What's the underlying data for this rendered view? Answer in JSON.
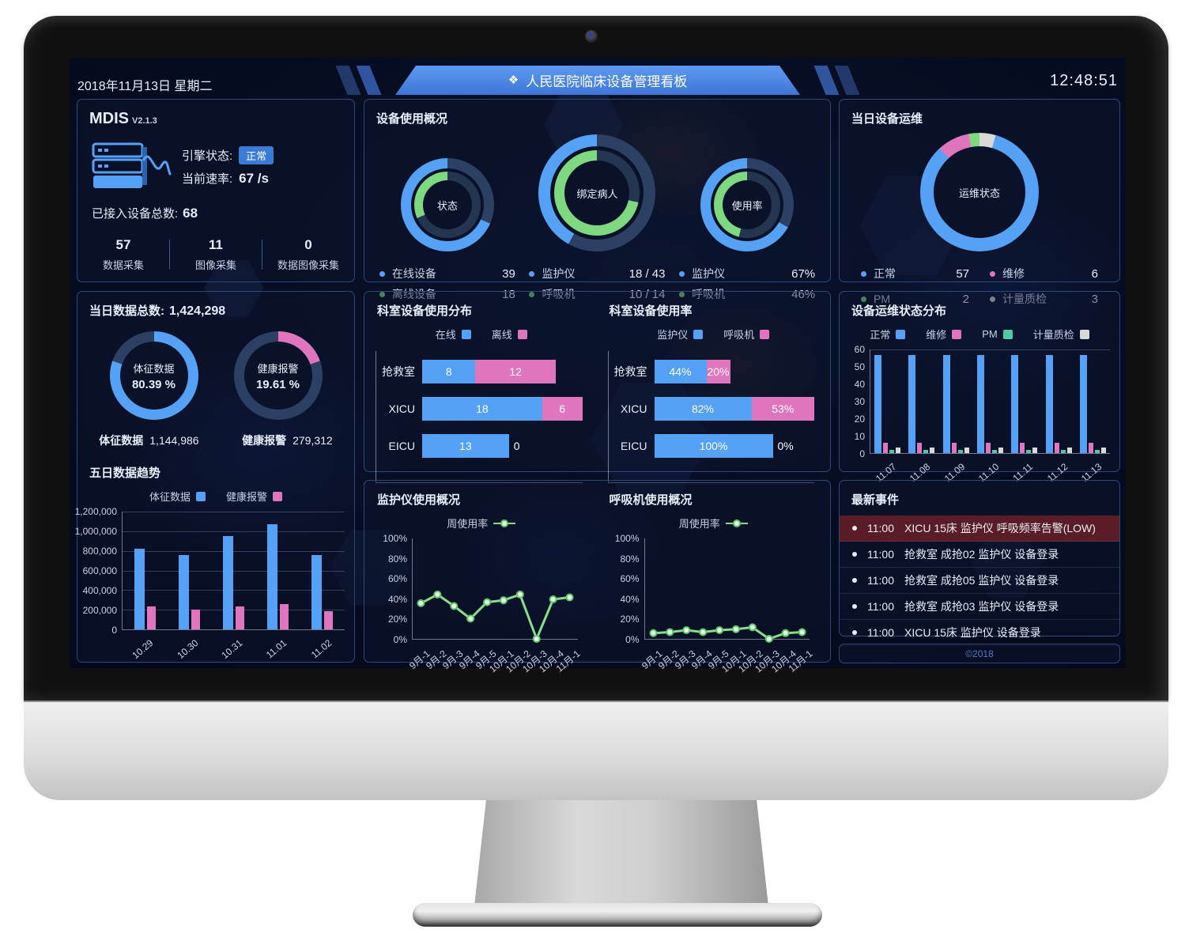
{
  "colors": {
    "blue": "#55a1f5",
    "green": "#7ed87f",
    "pink": "#df76bd",
    "teal": "#4ec9a5",
    "whiteseg": "#d9d9d9",
    "slate": "#2b4062",
    "slate2": "#24364f",
    "alert": "#5a1d27",
    "badge": "#3a7bd5",
    "footerc": "#4d7cc9"
  },
  "header": {
    "date": "2018年11月13日 星期二",
    "title": "人民医院临床设备管理看板",
    "title_icon": "diamond-cluster-icon",
    "time": "12:48:51"
  },
  "mdis": {
    "name": "MDIS",
    "version": "V2.1.3",
    "engine_label": "引擎状态:",
    "engine_status": "正常",
    "rate_label": "当前速率:",
    "rate_value": "67 /s",
    "total_label": "已接入设备总数:",
    "total_value": "68",
    "stats": [
      {
        "value": "57",
        "label": "数据采集"
      },
      {
        "value": "11",
        "label": "图像采集"
      },
      {
        "value": "0",
        "label": "数据图像采集"
      }
    ]
  },
  "usage": {
    "title": "设备使用概况",
    "donuts": [
      {
        "center": "状态",
        "blue_pct": 68.4,
        "green_pct": 31.6,
        "legend": [
          {
            "label": "在线设备",
            "value": "39"
          },
          {
            "label": "离线设备",
            "value": "18"
          }
        ]
      },
      {
        "center": "绑定病人",
        "blue_pct": 41.9,
        "green_pct": 71.4,
        "legend": [
          {
            "label": "监护仪",
            "value": "18 / 43"
          },
          {
            "label": "呼吸机",
            "value": "10 / 14"
          }
        ]
      },
      {
        "center": "使用率",
        "blue_pct": 67,
        "green_pct": 46,
        "legend": [
          {
            "label": "监护仪",
            "value": "67%"
          },
          {
            "label": "呼吸机",
            "value": "46%"
          }
        ]
      }
    ]
  },
  "maintenance": {
    "title": "当日设备运维",
    "center": "运维状态",
    "segments": [
      {
        "label": "计量质检",
        "value": 3,
        "color": "#d9d9d9"
      },
      {
        "label": "正常",
        "value": 57,
        "color": "#55a1f5"
      },
      {
        "label": "维修",
        "value": 6,
        "color": "#df76bd"
      },
      {
        "label": "PM",
        "value": 2,
        "color": "#7ed87f"
      }
    ],
    "legend": [
      {
        "label": "正常",
        "value": "57"
      },
      {
        "label": "维修",
        "value": "6"
      },
      {
        "label": "PM",
        "value": "2"
      },
      {
        "label": "计量质检",
        "value": "3"
      }
    ]
  },
  "daily": {
    "total_label": "当日数据总数:",
    "total_value": "1,424,298",
    "donuts": [
      {
        "line1": "体征数据",
        "line2": "80.39 %",
        "pct": 80.39,
        "color": "#55a1f5"
      },
      {
        "line1": "健康报警",
        "line2": "19.61 %",
        "pct": 19.61,
        "color": "#df76bd"
      }
    ],
    "totals": [
      {
        "label": "体征数据",
        "value": "1,144,986"
      },
      {
        "label": "健康报警",
        "value": "279,312"
      }
    ]
  },
  "trend": {
    "title": "五日数据趋势",
    "legend": [
      {
        "label": "体征数据"
      },
      {
        "label": "健康报警"
      }
    ],
    "y_ticks": [
      "1,200,000",
      "1,000,000",
      "800,000",
      "600,000",
      "400,000",
      "200,000",
      "0"
    ],
    "y_max": 1200000,
    "categories": [
      "10.29",
      "10.30",
      "10.31",
      "11.01",
      "11.02"
    ],
    "series": [
      {
        "name": "体征数据",
        "color": "#55a1f5",
        "values": [
          820000,
          760000,
          950000,
          1070000,
          760000
        ]
      },
      {
        "name": "健康报警",
        "color": "#df76bd",
        "values": [
          230000,
          200000,
          230000,
          260000,
          185000
        ]
      }
    ]
  },
  "dept_dist": {
    "title": "科室设备使用分布",
    "legend": [
      {
        "label": "在线"
      },
      {
        "label": "离线"
      }
    ],
    "max_total": 24,
    "rows": [
      {
        "label": "抢救室",
        "blue": 8,
        "pink": 12,
        "blue_text": "8",
        "pink_text": "12"
      },
      {
        "label": "XICU",
        "blue": 18,
        "pink": 6,
        "blue_text": "18",
        "pink_text": "6"
      },
      {
        "label": "EICU",
        "blue": 13,
        "pink": 0,
        "blue_text": "13",
        "pink_text": "0"
      }
    ]
  },
  "dept_usage": {
    "title": "科室设备使用率",
    "legend": [
      {
        "label": "监护仪"
      },
      {
        "label": "呼吸机"
      }
    ],
    "max_total": 135,
    "rows": [
      {
        "label": "抢救室",
        "blue": 44,
        "pink": 20,
        "blue_text": "44%",
        "pink_text": "20%"
      },
      {
        "label": "XICU",
        "blue": 82,
        "pink": 53,
        "blue_text": "82%",
        "pink_text": "53%"
      },
      {
        "label": "EICU",
        "blue": 100,
        "pink": 0,
        "blue_text": "100%",
        "pink_text": "0%"
      }
    ]
  },
  "maint_dist": {
    "title": "设备运维状态分布",
    "legend": [
      {
        "label": "正常"
      },
      {
        "label": "维修"
      },
      {
        "label": "PM"
      },
      {
        "label": "计量质检"
      }
    ],
    "y_ticks": [
      "60",
      "50",
      "40",
      "30",
      "20",
      "10",
      "0"
    ],
    "y_max": 60,
    "categories": [
      "11.07",
      "11.08",
      "11.09",
      "11.10",
      "11.11",
      "11.12",
      "11.13"
    ],
    "series_colors": [
      "#55a1f5",
      "#df76bd",
      "#4ec9a5",
      "#d9d9d9"
    ],
    "values_per_day": [
      57,
      6,
      2,
      3
    ]
  },
  "monitor_line": {
    "title": "监护仪使用概况",
    "legend_label": "周使用率",
    "y_ticks": [
      "100%",
      "80%",
      "60%",
      "40%",
      "20%",
      "0%"
    ],
    "x": [
      "9月-1",
      "9月-2",
      "9月-3",
      "9月-4",
      "9月-5",
      "10月-1",
      "10月-2",
      "10月-3",
      "10月-4",
      "11月-1"
    ],
    "values": [
      37,
      46,
      34,
      21,
      38,
      40,
      46,
      0,
      41,
      43
    ]
  },
  "vent_line": {
    "title": "呼吸机使用概况",
    "legend_label": "周使用率",
    "y_ticks": [
      "100%",
      "80%",
      "60%",
      "40%",
      "20%",
      "0%"
    ],
    "x": [
      "9月-1",
      "9月-2",
      "9月-3",
      "9月-4",
      "9月-5",
      "10月-1",
      "10月-2",
      "10月-3",
      "10月-4",
      "11月-1"
    ],
    "values": [
      6,
      7,
      9,
      7,
      9,
      10,
      12,
      0,
      6,
      7
    ]
  },
  "events": {
    "title": "最新事件",
    "items": [
      {
        "time": "11:00",
        "text": "XICU 15床 监护仪 呼吸频率告警(LOW)",
        "alert": true
      },
      {
        "time": "11:00",
        "text": "抢救室 成抢02 监护仪 设备登录",
        "alert": false
      },
      {
        "time": "11:00",
        "text": "抢救室 成抢05 监护仪 设备登录",
        "alert": false
      },
      {
        "time": "11:00",
        "text": "抢救室 成抢03 监护仪 设备登录",
        "alert": false
      },
      {
        "time": "11:00",
        "text": "XICU 15床 监护仪 设备登录",
        "alert": false
      }
    ]
  },
  "footer": {
    "text": "©2018"
  }
}
